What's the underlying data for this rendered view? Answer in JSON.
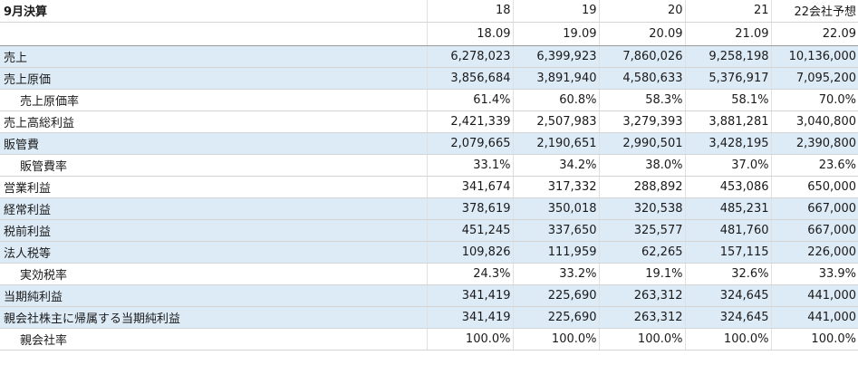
{
  "header": {
    "title": "9月決算",
    "periods": [
      "18",
      "19",
      "20",
      "21",
      "22会社予想"
    ],
    "dates": [
      "18.09",
      "19.09",
      "20.09",
      "21.09",
      "22.09"
    ]
  },
  "rows": [
    {
      "label": "売上",
      "indent": false,
      "shaded": true,
      "values": [
        "6,278,023",
        "6,399,923",
        "7,860,026",
        "9,258,198",
        "10,136,000"
      ]
    },
    {
      "label": "売上原価",
      "indent": false,
      "shaded": true,
      "values": [
        "3,856,684",
        "3,891,940",
        "4,580,633",
        "5,376,917",
        "7,095,200"
      ]
    },
    {
      "label": "売上原価率",
      "indent": true,
      "shaded": false,
      "values": [
        "61.4%",
        "60.8%",
        "58.3%",
        "58.1%",
        "70.0%"
      ]
    },
    {
      "label": "売上高総利益",
      "indent": false,
      "shaded": false,
      "values": [
        "2,421,339",
        "2,507,983",
        "3,279,393",
        "3,881,281",
        "3,040,800"
      ]
    },
    {
      "label": "販管費",
      "indent": false,
      "shaded": true,
      "values": [
        "2,079,665",
        "2,190,651",
        "2,990,501",
        "3,428,195",
        "2,390,800"
      ]
    },
    {
      "label": "販管費率",
      "indent": true,
      "shaded": false,
      "values": [
        "33.1%",
        "34.2%",
        "38.0%",
        "37.0%",
        "23.6%"
      ]
    },
    {
      "label": "営業利益",
      "indent": false,
      "shaded": false,
      "values": [
        "341,674",
        "317,332",
        "288,892",
        "453,086",
        "650,000"
      ]
    },
    {
      "label": "経常利益",
      "indent": false,
      "shaded": true,
      "values": [
        "378,619",
        "350,018",
        "320,538",
        "485,231",
        "667,000"
      ]
    },
    {
      "label": "税前利益",
      "indent": false,
      "shaded": true,
      "values": [
        "451,245",
        "337,650",
        "325,577",
        "481,760",
        "667,000"
      ]
    },
    {
      "label": "法人税等",
      "indent": false,
      "shaded": true,
      "values": [
        "109,826",
        "111,959",
        "62,265",
        "157,115",
        "226,000"
      ]
    },
    {
      "label": "実効税率",
      "indent": true,
      "shaded": false,
      "values": [
        "24.3%",
        "33.2%",
        "19.1%",
        "32.6%",
        "33.9%"
      ]
    },
    {
      "label": "当期純利益",
      "indent": false,
      "shaded": true,
      "values": [
        "341,419",
        "225,690",
        "263,312",
        "324,645",
        "441,000"
      ]
    },
    {
      "label": "親会社株主に帰属する当期純利益",
      "indent": false,
      "shaded": true,
      "values": [
        "341,419",
        "225,690",
        "263,312",
        "324,645",
        "441,000"
      ]
    },
    {
      "label": "親会社率",
      "indent": true,
      "shaded": false,
      "values": [
        "100.0%",
        "100.0%",
        "100.0%",
        "100.0%",
        "100.0%"
      ]
    }
  ]
}
